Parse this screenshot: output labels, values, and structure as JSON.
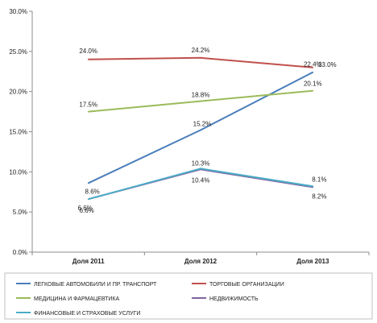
{
  "chart_data": {
    "type": "line",
    "categories": [
      "Доля 2011",
      "Доля 2012",
      "Доля 2013"
    ],
    "ylim": [
      0,
      30
    ],
    "ytick_labels": [
      "0.0%",
      "5.0%",
      "10.0%",
      "15.0%",
      "20.0%",
      "25.0%",
      "30.0%"
    ],
    "grid": false,
    "legend_position": "bottom",
    "series": [
      {
        "name": "ЛЕГКОВЫЕ АВТОМОБИЛИ И ПР. ТРАНСПОРТ",
        "color": "#4a7ebb",
        "values": [
          8.6,
          15.2,
          22.4
        ],
        "labels": [
          "8.6%",
          "15.2%",
          "22.4%"
        ]
      },
      {
        "name": "ТОРГОВЫЕ ОРГАНИЗАЦИИ",
        "color": "#c0504d",
        "values": [
          24.0,
          24.2,
          23.0
        ],
        "labels": [
          "24.0%",
          "24.2%",
          "23.0%"
        ]
      },
      {
        "name": "МЕДИЦИНА И ФАРМАЦЕВТИКА",
        "color": "#9bbb59",
        "values": [
          17.5,
          18.8,
          20.1
        ],
        "labels": [
          "17.5%",
          "18.8%",
          "20.1%"
        ]
      },
      {
        "name": "НЕДВИЖИМОСТЬ",
        "color": "#8064a2",
        "values": [
          6.6,
          10.3,
          8.1
        ],
        "labels": [
          "6.6%",
          "10.3%",
          "8.1%"
        ]
      },
      {
        "name": "ФИНАНСОВЫЕ И СТРАХОВЫЕ УСЛУГИ",
        "color": "#4bacc6",
        "values": [
          6.6,
          10.4,
          8.2
        ],
        "labels": [
          "6.6%",
          "10.4%",
          "8.2%"
        ]
      }
    ]
  }
}
